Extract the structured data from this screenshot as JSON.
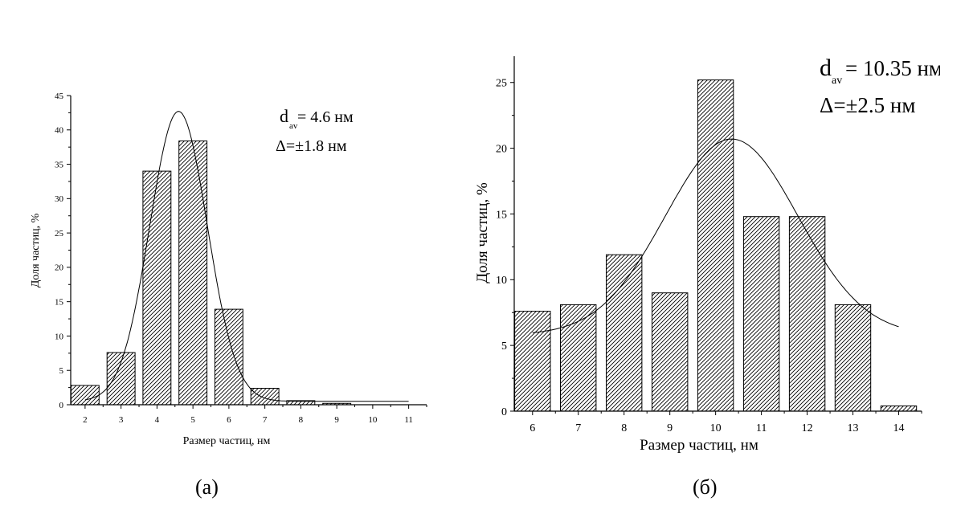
{
  "chart_data": [
    {
      "type": "bar",
      "panel": "(а)",
      "xlabel": "Размер частиц, нм",
      "ylabel": "Доля частиц, %",
      "categories": [
        "2",
        "3",
        "4",
        "5",
        "6",
        "7",
        "8",
        "9",
        "10",
        "11"
      ],
      "x_ticks": [
        2,
        3,
        4,
        5,
        6,
        7,
        8,
        9,
        10,
        11
      ],
      "y_ticks": [
        0,
        5,
        10,
        15,
        20,
        25,
        30,
        35,
        40,
        45
      ],
      "xlim": [
        1.6,
        11.5
      ],
      "ylim": [
        0,
        45
      ],
      "bars": [
        {
          "x": 2,
          "value": 2.8
        },
        {
          "x": 3,
          "value": 7.6
        },
        {
          "x": 4,
          "value": 34.0
        },
        {
          "x": 5,
          "value": 38.4
        },
        {
          "x": 6,
          "value": 13.9
        },
        {
          "x": 7,
          "value": 2.4
        },
        {
          "x": 8,
          "value": 0.6
        },
        {
          "x": 9,
          "value": 0.2
        }
      ],
      "fit_curve": {
        "type": "gaussian",
        "center": 4.6,
        "amplitude": 42.2,
        "sigma": 0.8,
        "baseline": 0.5,
        "x_range": [
          2.0,
          11.0
        ]
      },
      "annotations": {
        "d_main": "d",
        "d_sub": "av",
        "d_value": "= 4.6 нм",
        "delta": "Δ=±1.8 нм"
      },
      "bar_fill": "diagonal-hatch",
      "grid": false,
      "legend": "none"
    },
    {
      "type": "bar",
      "panel": "(б)",
      "xlabel": "Размер частиц, нм",
      "ylabel": "Доля частиц, %",
      "categories": [
        "6",
        "7",
        "8",
        "9",
        "10",
        "11",
        "12",
        "13",
        "14"
      ],
      "x_ticks": [
        6,
        7,
        8,
        9,
        10,
        11,
        12,
        13,
        14
      ],
      "y_ticks": [
        0,
        5,
        10,
        15,
        20,
        25
      ],
      "xlim": [
        5.6,
        14.5
      ],
      "ylim": [
        0,
        27
      ],
      "bars": [
        {
          "x": 6,
          "value": 7.6
        },
        {
          "x": 7,
          "value": 8.1
        },
        {
          "x": 8,
          "value": 11.9
        },
        {
          "x": 9,
          "value": 9.0
        },
        {
          "x": 10,
          "value": 25.2
        },
        {
          "x": 11,
          "value": 14.8
        },
        {
          "x": 12,
          "value": 14.8
        },
        {
          "x": 13,
          "value": 8.1
        },
        {
          "x": 14,
          "value": 0.4
        }
      ],
      "fit_curve": {
        "type": "gaussian",
        "center": 10.35,
        "amplitude": 14.9,
        "sigma": 1.45,
        "baseline": 5.8,
        "x_range": [
          6.0,
          14.0
        ]
      },
      "annotations": {
        "d_main": "d",
        "d_sub": "av",
        "d_value": "= 10.35 нм",
        "delta": "Δ=±2.5 нм"
      },
      "bar_fill": "diagonal-hatch",
      "grid": false,
      "legend": "none"
    }
  ]
}
